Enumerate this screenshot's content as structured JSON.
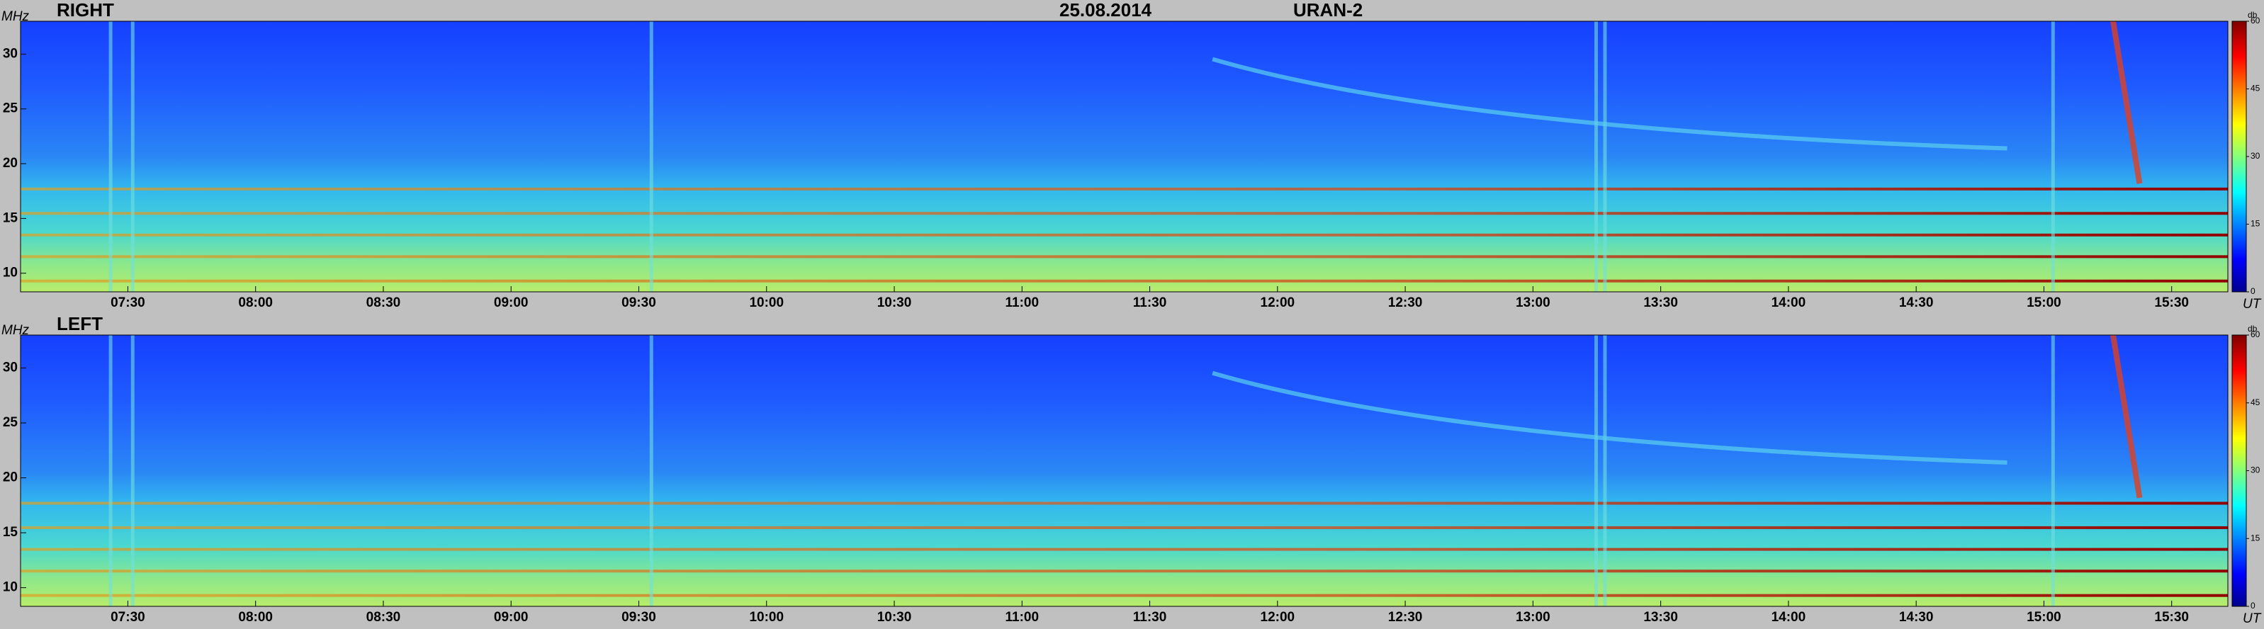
{
  "header": {
    "date": "25.08.2014",
    "instrument": "URAN-2"
  },
  "chart_data": [
    {
      "type": "heatmap",
      "title": "RIGHT",
      "ylabel": "MHz",
      "xlabel": "UT",
      "xlim": [
        7.08,
        15.72
      ],
      "xticks": [
        {
          "value": 7.5,
          "label": "07:30"
        },
        {
          "value": 8,
          "label": "08:00"
        },
        {
          "value": 8.5,
          "label": "08:30"
        },
        {
          "value": 9,
          "label": "09:00"
        },
        {
          "value": 9.5,
          "label": "09:30"
        },
        {
          "value": 10,
          "label": "10:00"
        },
        {
          "value": 10.5,
          "label": "10:30"
        },
        {
          "value": 11,
          "label": "11:00"
        },
        {
          "value": 11.5,
          "label": "11:30"
        },
        {
          "value": 12,
          "label": "12:00"
        },
        {
          "value": 12.5,
          "label": "12:30"
        },
        {
          "value": 13,
          "label": "13:00"
        },
        {
          "value": 13.5,
          "label": "13:30"
        },
        {
          "value": 14,
          "label": "14:00"
        },
        {
          "value": 14.5,
          "label": "14:30"
        },
        {
          "value": 15,
          "label": "15:00"
        },
        {
          "value": 15.5,
          "label": "15:30"
        }
      ],
      "ylim": [
        8.3,
        33
      ],
      "yticks": [
        10,
        15,
        20,
        25,
        30
      ],
      "colormap": "jet",
      "colorbar": {
        "label": "db",
        "lim": [
          0,
          60
        ],
        "ticks": [
          0,
          15,
          30,
          45,
          60
        ]
      }
    },
    {
      "type": "heatmap",
      "title": "LEFT",
      "ylabel": "MHz",
      "xlabel": "UT",
      "xlim": [
        7.08,
        15.72
      ],
      "xticks": [
        {
          "value": 7.5,
          "label": "07:30"
        },
        {
          "value": 8,
          "label": "08:00"
        },
        {
          "value": 8.5,
          "label": "08:30"
        },
        {
          "value": 9,
          "label": "09:00"
        },
        {
          "value": 9.5,
          "label": "09:30"
        },
        {
          "value": 10,
          "label": "10:00"
        },
        {
          "value": 10.5,
          "label": "10:30"
        },
        {
          "value": 11,
          "label": "11:00"
        },
        {
          "value": 11.5,
          "label": "11:30"
        },
        {
          "value": 12,
          "label": "12:00"
        },
        {
          "value": 12.5,
          "label": "12:30"
        },
        {
          "value": 13,
          "label": "13:00"
        },
        {
          "value": 13.5,
          "label": "13:30"
        },
        {
          "value": 14,
          "label": "14:00"
        },
        {
          "value": 14.5,
          "label": "14:30"
        },
        {
          "value": 15,
          "label": "15:00"
        },
        {
          "value": 15.5,
          "label": "15:30"
        }
      ],
      "ylim": [
        8.3,
        33
      ],
      "yticks": [
        10,
        15,
        20,
        25,
        30
      ],
      "colormap": "jet",
      "colorbar": {
        "label": "db",
        "lim": [
          0,
          60
        ],
        "ticks": [
          0,
          15,
          30,
          45,
          60
        ]
      }
    }
  ]
}
